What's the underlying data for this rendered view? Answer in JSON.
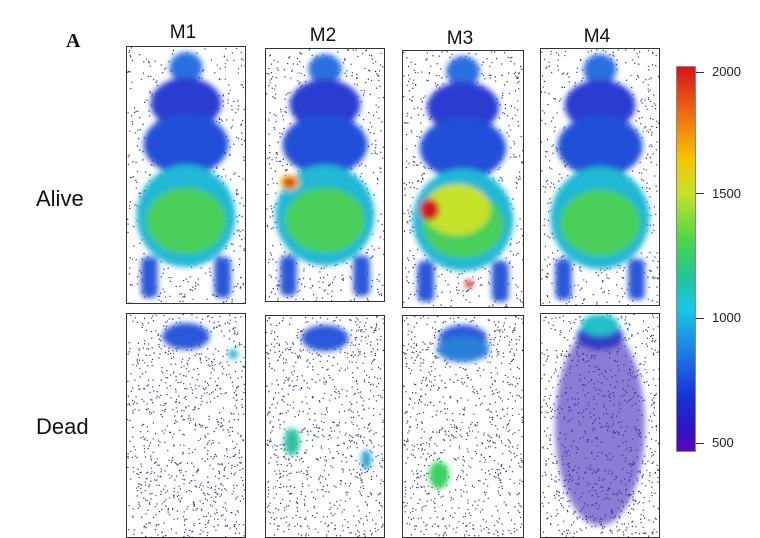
{
  "figure": {
    "panel_letter": "A",
    "columns": [
      "M1",
      "M2",
      "M3",
      "M4"
    ],
    "rows": [
      "Alive",
      "Dead"
    ]
  },
  "colorbar": {
    "ticks": [
      "2000",
      "1500",
      "1000",
      "500"
    ],
    "tick_values": [
      2000,
      1500,
      1000,
      500
    ],
    "min": 500,
    "max": 2000,
    "colors": [
      "#d4141a",
      "#f7c400",
      "#4cd64a",
      "#18c8e6",
      "#1432d8",
      "#5a08c0"
    ]
  },
  "colors": {
    "border": "#333333",
    "background": "#ffffff",
    "noise": "#2a2a8c"
  }
}
